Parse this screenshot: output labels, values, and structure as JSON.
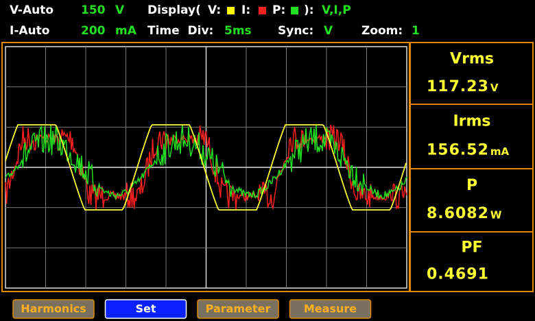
{
  "status": {
    "row1": {
      "v_mode": "V-Auto",
      "v_range": "150",
      "v_unit": "V",
      "display_label": "Display(",
      "v_key": "V:",
      "i_key": "I:",
      "p_key": "P:",
      "display_close": "):",
      "display_value": "V,I,P"
    },
    "row2": {
      "i_mode": "I-Auto",
      "i_range": "200",
      "i_unit": "mA",
      "time_div_label": "Time  Div:",
      "time_div_value": "5ms",
      "sync_label": "Sync:",
      "sync_value": "V",
      "zoom_label": "Zoom:",
      "zoom_value": "1"
    }
  },
  "readings": [
    {
      "label": "Vrms",
      "value": "117.23",
      "unit": "V"
    },
    {
      "label": "Irms",
      "value": "156.52",
      "unit": "mA"
    },
    {
      "label": "P",
      "value": "8.6082",
      "unit": "W"
    },
    {
      "label": "PF",
      "value": "0.4691",
      "unit": ""
    }
  ],
  "buttons": [
    "Harmonics",
    "Set",
    "Parameter",
    "Measure"
  ]
}
